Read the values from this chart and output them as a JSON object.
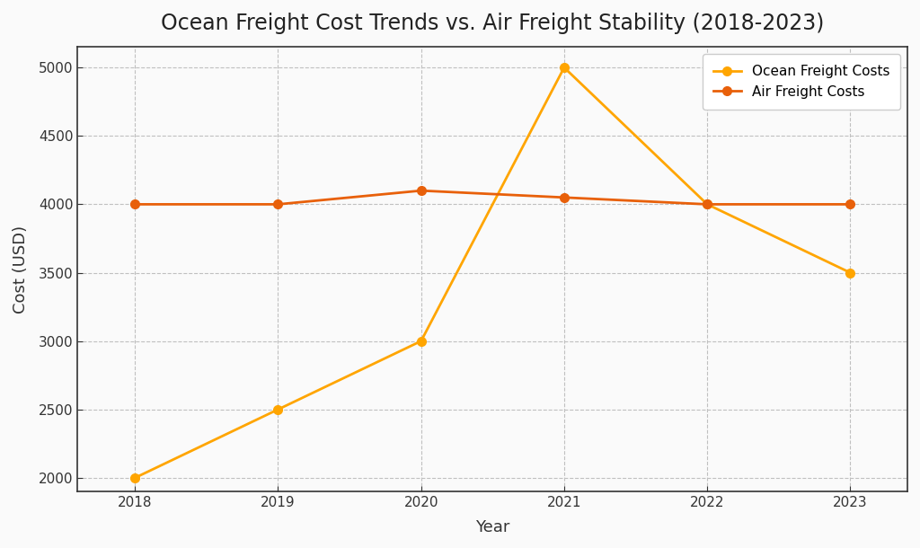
{
  "title": "Ocean Freight Cost Trends vs. Air Freight Stability (2018-2023)",
  "xlabel": "Year",
  "ylabel": "Cost (USD)",
  "years": [
    2018,
    2019,
    2020,
    2021,
    2022,
    2023
  ],
  "ocean_freight": [
    2000,
    2500,
    3000,
    5000,
    4000,
    3500
  ],
  "air_freight": [
    4000,
    4000,
    4100,
    4050,
    4000,
    4000
  ],
  "ocean_color": "#FFA500",
  "air_color": "#E8600A",
  "ocean_label": "Ocean Freight Costs",
  "air_label": "Air Freight Costs",
  "ylim": [
    1900,
    5150
  ],
  "xlim": [
    2017.6,
    2023.4
  ],
  "yticks": [
    2000,
    2500,
    3000,
    3500,
    4000,
    4500,
    5000
  ],
  "background_color": "#FAFAFA",
  "plot_bg_color": "#FAFAFA",
  "grid_color": "#C0C0C0",
  "spine_color": "#333333",
  "title_fontsize": 17,
  "axis_label_fontsize": 13,
  "tick_fontsize": 11,
  "legend_fontsize": 11,
  "line_width": 2.0,
  "marker_size": 7
}
